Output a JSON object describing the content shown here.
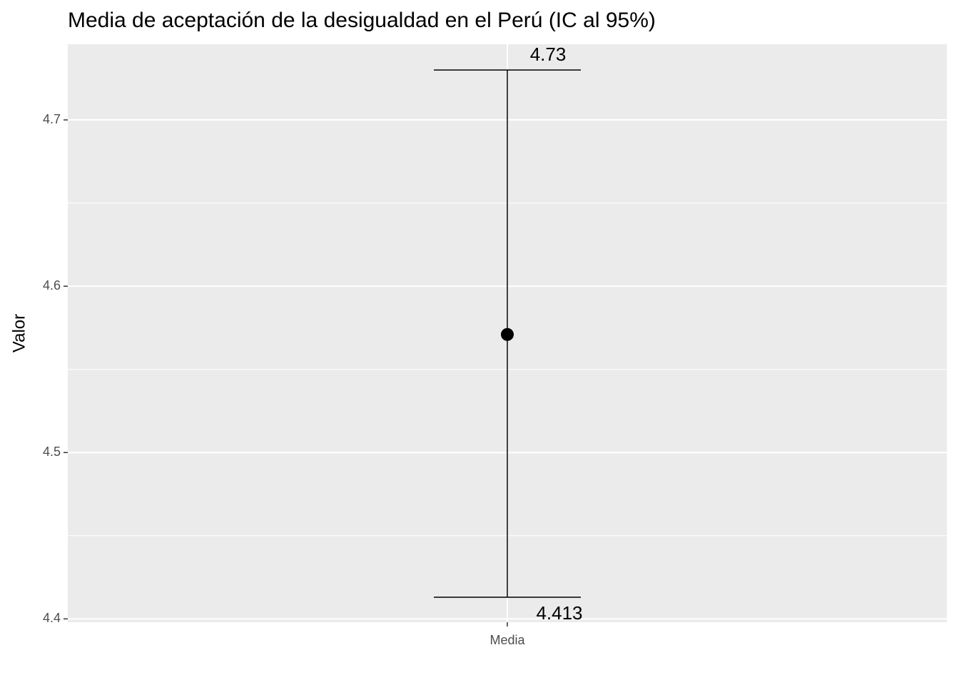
{
  "chart_data": {
    "type": "errorbar",
    "title": "Media de aceptación de la desigualdad en el Perú (IC al 95%)",
    "y_label": "Valor",
    "categories": [
      "Media"
    ],
    "values": [
      4.571
    ],
    "lower": [
      4.413
    ],
    "upper": [
      4.73
    ],
    "color": "#000000",
    "ylim": [
      4.398,
      4.7455
    ],
    "yticks": [
      4.4,
      4.5,
      4.6,
      4.7
    ],
    "y_minor_ticks": [
      4.45,
      4.55,
      4.65
    ],
    "grid": true
  }
}
